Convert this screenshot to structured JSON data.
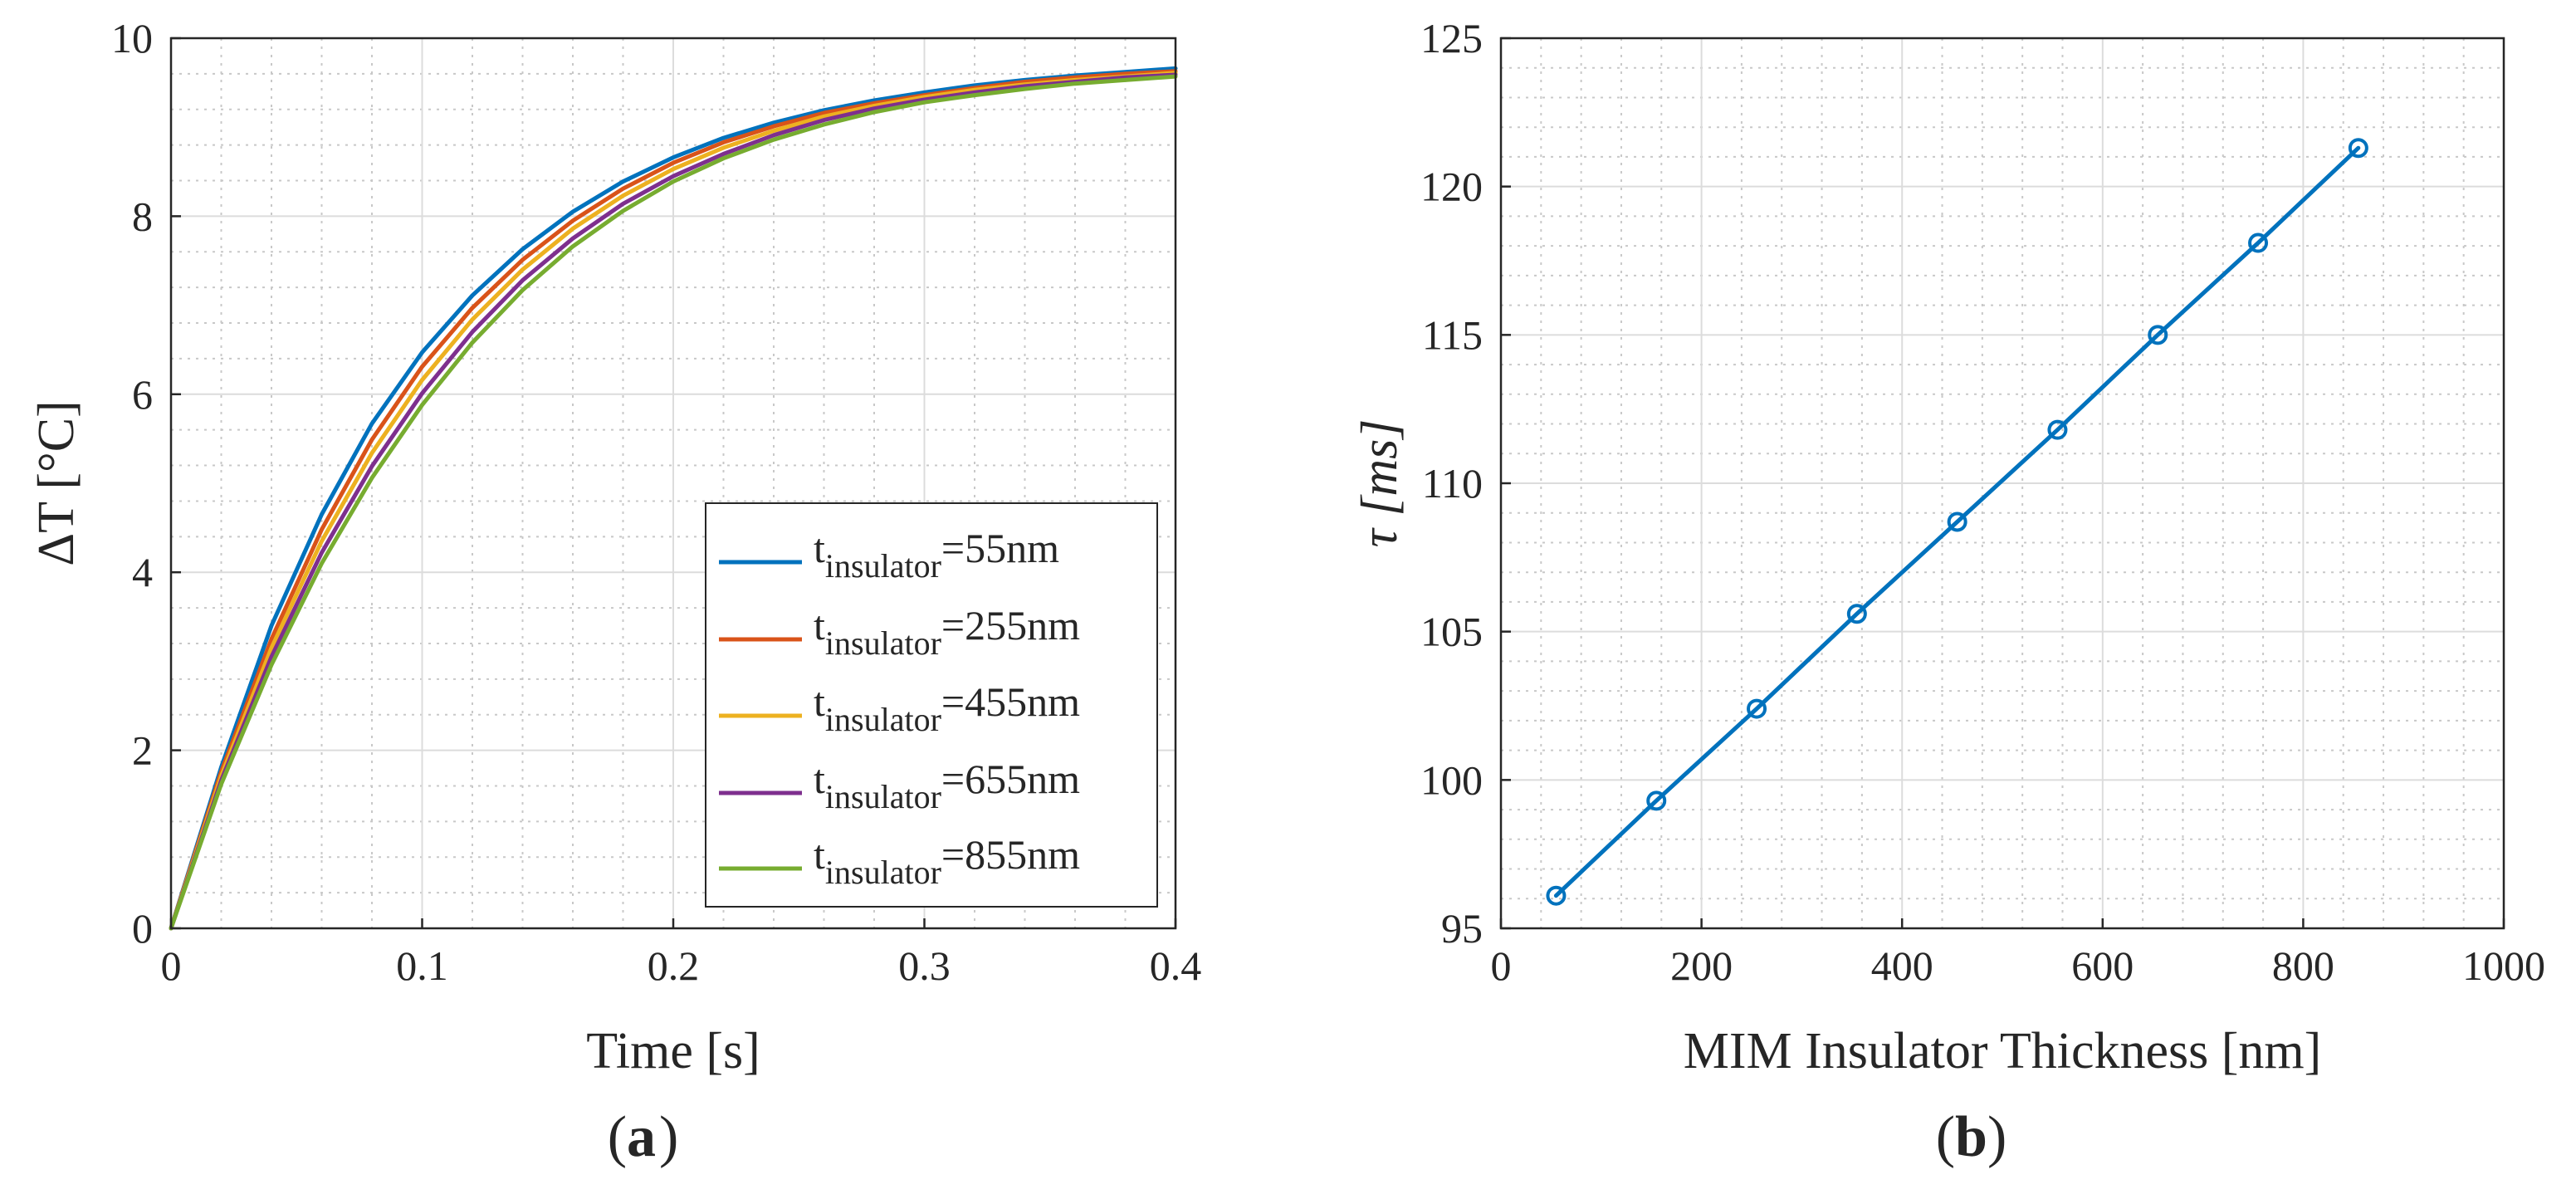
{
  "chart_data": [
    {
      "type": "line",
      "panel_label": "a",
      "xlabel": "Time [s]",
      "ylabel": "ΔT [°C]",
      "xlim": [
        0,
        0.4
      ],
      "ylim": [
        0,
        10
      ],
      "xticks": [
        "0",
        "0.1",
        "0.2",
        "0.3",
        "0.4"
      ],
      "yticks": [
        "0",
        "2",
        "4",
        "6",
        "8",
        "10"
      ],
      "grid": true,
      "minor_grid": true,
      "legend_position": "bottom-right",
      "x": [
        0,
        0.02,
        0.04,
        0.06,
        0.08,
        0.1,
        0.12,
        0.14,
        0.16,
        0.18,
        0.2,
        0.22,
        0.24,
        0.26,
        0.28,
        0.3,
        0.32,
        0.34,
        0.36,
        0.38,
        0.4
      ],
      "series": [
        {
          "name": "t_insulator=55nm",
          "label_main": "t",
          "label_sub": "insulator",
          "label_tail": "=55nm",
          "color": "#0072BD",
          "values": [
            0,
            1.81,
            3.4,
            4.65,
            5.67,
            6.47,
            7.11,
            7.63,
            8.05,
            8.39,
            8.66,
            8.88,
            9.05,
            9.19,
            9.3,
            9.39,
            9.47,
            9.53,
            9.58,
            9.62,
            9.66
          ]
        },
        {
          "name": "t_insulator=255nm",
          "label_main": "t",
          "label_sub": "insulator",
          "label_tail": "=255nm",
          "color": "#D95319",
          "values": [
            0,
            1.76,
            3.25,
            4.48,
            5.49,
            6.31,
            6.97,
            7.51,
            7.95,
            8.31,
            8.6,
            8.83,
            9.01,
            9.16,
            9.27,
            9.36,
            9.44,
            9.51,
            9.56,
            9.6,
            9.63
          ]
        },
        {
          "name": "t_insulator=455nm",
          "label_main": "t",
          "label_sub": "insulator",
          "label_tail": "=455nm",
          "color": "#EDB120",
          "values": [
            0,
            1.71,
            3.15,
            4.35,
            5.34,
            6.16,
            6.84,
            7.4,
            7.86,
            8.23,
            8.53,
            8.77,
            8.96,
            9.12,
            9.24,
            9.34,
            9.42,
            9.48,
            9.53,
            9.57,
            9.61
          ]
        },
        {
          "name": "t_insulator=655nm",
          "label_main": "t",
          "label_sub": "insulator",
          "label_tail": "=655nm",
          "color": "#7E2F8E",
          "values": [
            0,
            1.66,
            3.05,
            4.22,
            5.19,
            6.01,
            6.7,
            7.28,
            7.75,
            8.14,
            8.45,
            8.7,
            8.91,
            9.08,
            9.21,
            9.31,
            9.39,
            9.46,
            9.51,
            9.56,
            9.59
          ]
        },
        {
          "name": "t_insulator=855nm",
          "label_main": "t",
          "label_sub": "insulator",
          "label_tail": "=855nm",
          "color": "#77AC30",
          "values": [
            0,
            1.62,
            2.96,
            4.1,
            5.06,
            5.88,
            6.58,
            7.17,
            7.66,
            8.06,
            8.39,
            8.65,
            8.86,
            9.03,
            9.17,
            9.28,
            9.36,
            9.43,
            9.49,
            9.53,
            9.57
          ]
        }
      ]
    },
    {
      "type": "line",
      "panel_label": "b",
      "xlabel": "MIM Insulator Thickness [nm]",
      "ylabel": "τ [ms]",
      "xlim": [
        0,
        1000
      ],
      "ylim": [
        95,
        125
      ],
      "xticks": [
        "0",
        "200",
        "400",
        "600",
        "800",
        "1000"
      ],
      "yticks": [
        "95",
        "100",
        "105",
        "110",
        "115",
        "120",
        "125"
      ],
      "grid": true,
      "minor_grid": true,
      "marker": "circle",
      "color": "#0072BD",
      "x": [
        55,
        155,
        255,
        355,
        455,
        555,
        655,
        755,
        855
      ],
      "series": [
        {
          "name": "tau",
          "values": [
            96.1,
            99.3,
            102.4,
            105.6,
            108.7,
            111.8,
            115.0,
            118.1,
            121.3
          ]
        }
      ]
    }
  ]
}
